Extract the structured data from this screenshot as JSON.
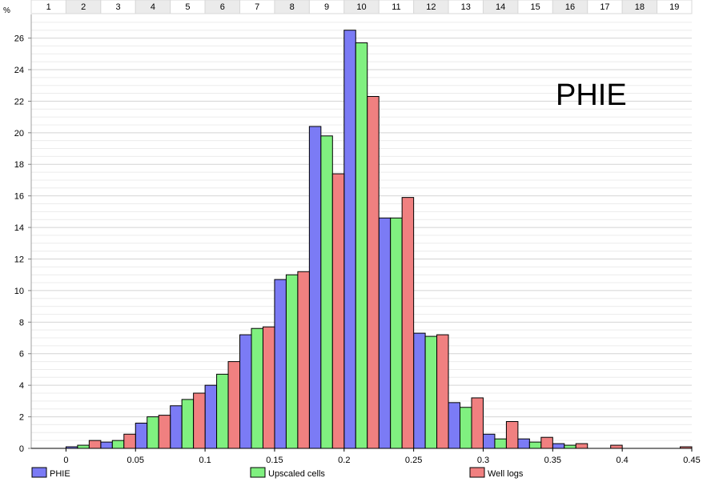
{
  "chart_data": {
    "type": "bar",
    "title": "PHIE",
    "ylabel": "%",
    "xlabel": "",
    "ylim": [
      0,
      27.5
    ],
    "y_ticks": [
      0,
      2,
      4,
      6,
      8,
      10,
      12,
      14,
      16,
      18,
      20,
      22,
      24,
      26
    ],
    "xlim": [
      -0.025,
      0.45
    ],
    "x_ticks": [
      0,
      0.05,
      0.1,
      0.15,
      0.2,
      0.25,
      0.3,
      0.35,
      0.4,
      0.45
    ],
    "x_tick_labels": [
      "0",
      "0.05",
      "0.1",
      "0.15",
      "0.2",
      "0.25",
      "0.3",
      "0.35",
      "0.4",
      "0.45"
    ],
    "bin_width": 0.025,
    "bins": [
      "1",
      "2",
      "3",
      "4",
      "5",
      "6",
      "7",
      "8",
      "9",
      "10",
      "11",
      "12",
      "13",
      "14",
      "15",
      "16",
      "17",
      "18",
      "19"
    ],
    "bin_starts": [
      -0.025,
      0.0,
      0.025,
      0.05,
      0.075,
      0.1,
      0.125,
      0.15,
      0.175,
      0.2,
      0.225,
      0.25,
      0.275,
      0.3,
      0.325,
      0.35,
      0.375,
      0.4,
      0.425
    ],
    "grid": true,
    "legend_position": "bottom",
    "series": [
      {
        "name": "PHIE",
        "color": "#7b7bf5",
        "values": [
          0,
          0.1,
          0.4,
          1.6,
          2.7,
          4.0,
          7.2,
          10.7,
          20.4,
          26.5,
          14.6,
          7.3,
          2.9,
          0.9,
          0.6,
          0.3,
          0,
          0,
          0
        ]
      },
      {
        "name": "Upscaled cells",
        "color": "#80f080",
        "values": [
          0,
          0.2,
          0.5,
          2.0,
          3.1,
          4.7,
          7.6,
          11.0,
          19.8,
          25.7,
          14.6,
          7.1,
          2.6,
          0.6,
          0.4,
          0.2,
          0,
          0,
          0
        ]
      },
      {
        "name": "Well logs",
        "color": "#f08080",
        "values": [
          0,
          0.5,
          0.9,
          2.1,
          3.5,
          5.5,
          7.7,
          11.2,
          17.4,
          22.3,
          15.9,
          7.2,
          3.2,
          1.7,
          0.7,
          0.3,
          0.2,
          0,
          0.1
        ]
      }
    ]
  }
}
